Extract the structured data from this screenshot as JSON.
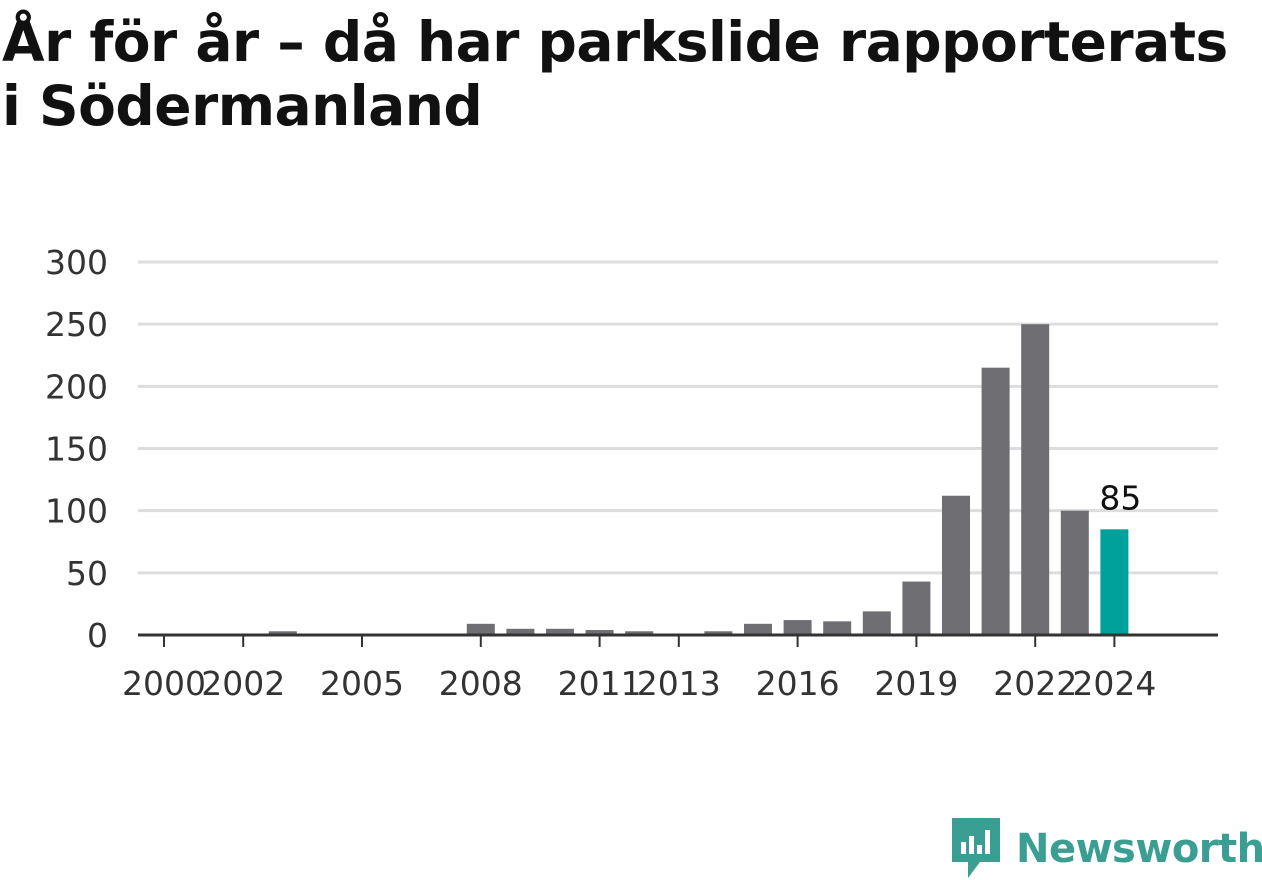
{
  "title": "År för år – då har parkslide rapporterats i Södermanland",
  "brand": {
    "name": "Newsworthy",
    "icon": "newsworthy-logo-icon",
    "color": "#3a9e93"
  },
  "chart_data": {
    "type": "bar",
    "title": "År för år – då har parkslide rapporterats i Södermanland",
    "xlabel": "",
    "ylabel": "",
    "ylim": [
      0,
      300
    ],
    "yticks": [
      0,
      50,
      100,
      150,
      200,
      250,
      300
    ],
    "grid": true,
    "x": [
      2000,
      2001,
      2002,
      2003,
      2004,
      2005,
      2006,
      2007,
      2008,
      2009,
      2010,
      2011,
      2012,
      2013,
      2014,
      2015,
      2016,
      2017,
      2018,
      2019,
      2020,
      2021,
      2022,
      2023,
      2024
    ],
    "values": [
      0,
      0,
      0,
      3,
      0,
      0,
      0,
      0,
      9,
      5,
      5,
      4,
      3,
      0,
      3,
      9,
      12,
      11,
      19,
      43,
      112,
      215,
      250,
      100,
      85
    ],
    "xticks": [
      2000,
      2002,
      2005,
      2008,
      2011,
      2013,
      2016,
      2019,
      2022,
      2024
    ],
    "highlight": {
      "x": 2024,
      "label": "85"
    },
    "colors": {
      "bar": "#6f6e73",
      "highlight": "#00a19a",
      "grid": "#dddddd",
      "axis": "#333333"
    }
  }
}
